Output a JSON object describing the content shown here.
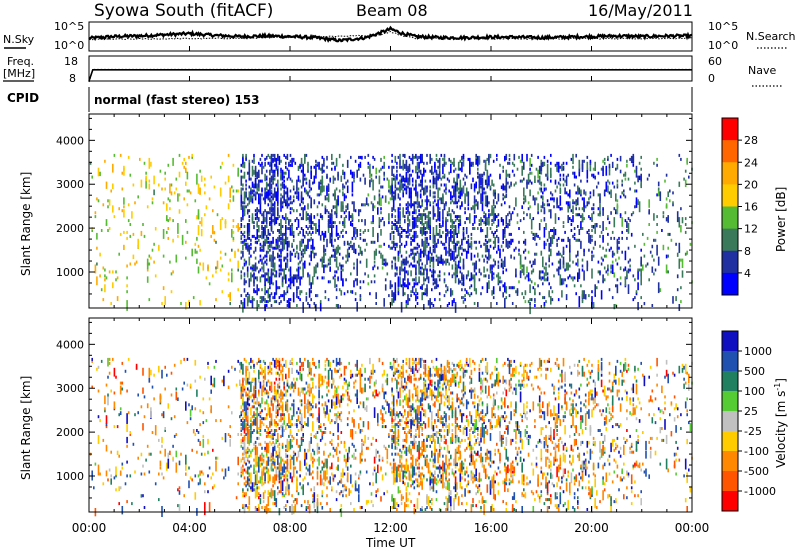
{
  "header": {
    "station": "Syowa South (fitACF)",
    "beam": "Beam 08",
    "date": "16/May/2011"
  },
  "noise_panel": {
    "left_label": "N.Sky",
    "left_ticks": [
      "10^5",
      "10^0"
    ],
    "right_ticks": [
      "10^5",
      "10^0"
    ],
    "right_label": "N.Search",
    "right_label_style": "dotted"
  },
  "freq_panel": {
    "left_label_top": "Freq.",
    "left_label_unit": "[MHz]",
    "left_ticks": [
      "18",
      "8"
    ],
    "right_ticks": [
      "60",
      "0"
    ],
    "right_label": "Nave",
    "right_label_style": "dotted"
  },
  "cpid_panel": {
    "label": "CPID",
    "text": "normal (fast stereo) 153"
  },
  "x_axis": {
    "ticks": [
      "00:00",
      "04:00",
      "08:00",
      "12:00",
      "16:00",
      "20:00",
      "00:00"
    ],
    "label": "Time UT"
  },
  "power_colorbar": {
    "label": "Power [dB]",
    "ticks": [
      "28",
      "24",
      "20",
      "16",
      "12",
      "8",
      "4"
    ],
    "colors": [
      "#ff0000",
      "#ff6600",
      "#ffaa00",
      "#ffcc00",
      "#55bb33",
      "#3a7a5a",
      "#2030a0",
      "#0000ff"
    ]
  },
  "velocity_colorbar": {
    "label": "Velocity [m s",
    "label_sup": "-1",
    "label_end": "]",
    "ticks": [
      "1000",
      "500",
      "100",
      "25",
      "-25",
      "-100",
      "-500",
      "-1000"
    ],
    "colors": [
      "#1010c0",
      "#2050b0",
      "#208060",
      "#55cc33",
      "#c0c0c0",
      "#ffcc00",
      "#ff8800",
      "#ff5500",
      "#ff0000"
    ]
  },
  "chart_data": [
    {
      "type": "line",
      "panel": "noise",
      "x_range": [
        0,
        24
      ],
      "ylim_log10": [
        0,
        5
      ],
      "series": [
        {
          "key": "sky",
          "x": [
            0,
            1,
            2,
            3,
            4,
            5,
            6,
            7,
            8,
            9,
            10,
            11,
            11.5,
            12,
            12.5,
            13,
            14,
            15,
            16,
            17,
            18,
            19,
            20,
            21,
            22,
            23,
            24
          ],
          "y_log10": [
            2.2,
            2.5,
            2.6,
            2.8,
            3.0,
            2.7,
            2.5,
            2.6,
            2.5,
            2.3,
            1.8,
            2.3,
            3.0,
            3.8,
            3.0,
            2.5,
            2.3,
            2.3,
            2.4,
            2.4,
            2.3,
            2.4,
            2.5,
            2.6,
            2.5,
            2.6,
            2.6
          ]
        },
        {
          "key": "search",
          "style": "dotted",
          "x": [
            0,
            6,
            11.5,
            12,
            12.5,
            13,
            18,
            24
          ],
          "y_log10": [
            2.0,
            2.2,
            2.7,
            3.3,
            2.6,
            2.2,
            2.1,
            2.2
          ]
        }
      ]
    },
    {
      "type": "line",
      "panel": "freq",
      "x_range": [
        0,
        24
      ],
      "series": [
        {
          "key": "frequency",
          "ylim": [
            8,
            18
          ],
          "x": [
            0,
            0.15,
            24
          ],
          "y": [
            8,
            12.5,
            12.5
          ]
        },
        {
          "key": "nave",
          "style": "dotted",
          "ylim": [
            0,
            60
          ],
          "x": [
            0,
            0.15,
            24
          ],
          "y": [
            0,
            30,
            30
          ]
        }
      ]
    },
    {
      "type": "heatmap",
      "panel": "power",
      "x_range": [
        0,
        24
      ],
      "ylim": [
        180,
        4600
      ],
      "ylabel": "Slant Range [km]",
      "yticks": [
        1000,
        2000,
        3000,
        4000
      ],
      "clim": [
        0,
        30
      ],
      "activity_by_hour": [
        0.1,
        0.12,
        0.1,
        0.12,
        0.14,
        0.12,
        0.85,
        0.9,
        0.55,
        0.5,
        0.4,
        0.3,
        0.85,
        0.75,
        0.7,
        0.55,
        0.45,
        0.35,
        0.45,
        0.4,
        0.35,
        0.3,
        0.15,
        0.15
      ],
      "typical_power_by_hour": [
        16,
        17,
        16,
        16,
        17,
        15,
        6,
        5,
        6,
        6,
        6,
        7,
        5,
        6,
        6,
        6,
        6,
        7,
        6,
        6,
        7,
        7,
        8,
        10
      ],
      "max_range_km": 3650
    },
    {
      "type": "heatmap",
      "panel": "velocity",
      "x_range": [
        0,
        24
      ],
      "ylim": [
        180,
        4600
      ],
      "ylabel": "Slant Range [km]",
      "yticks": [
        1000,
        2000,
        3000,
        4000
      ],
      "clim": [
        -1200,
        1200
      ],
      "activity_by_hour": [
        0.1,
        0.12,
        0.1,
        0.12,
        0.14,
        0.12,
        0.85,
        0.9,
        0.55,
        0.5,
        0.4,
        0.3,
        0.85,
        0.75,
        0.7,
        0.55,
        0.45,
        0.35,
        0.45,
        0.4,
        0.35,
        0.3,
        0.15,
        0.15
      ],
      "max_range_km": 3650
    }
  ]
}
